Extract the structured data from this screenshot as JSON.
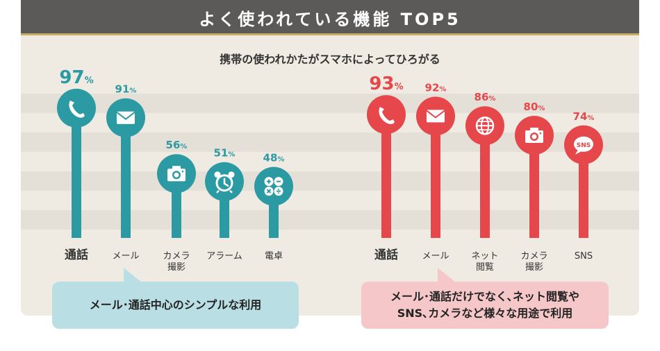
{
  "header": {
    "title": "よく使われている機能 TOP5"
  },
  "subtitle": "携帯の使われかたがスマホによってひろがる",
  "colors": {
    "teal": "#2c9aa3",
    "red": "#e5474a"
  },
  "chart_data": [
    {
      "type": "bar",
      "categories": [
        "通話",
        "メール",
        "カメラ撮影",
        "アラーム",
        "電卓"
      ],
      "category_lines": [
        [
          "通話"
        ],
        [
          "メール"
        ],
        [
          "カメラ",
          "撮影"
        ],
        [
          "アラーム"
        ],
        [
          "電卓"
        ]
      ],
      "icons": [
        "phone-icon",
        "mail-icon",
        "camera-icon",
        "alarm-clock-icon",
        "calculator-icon"
      ],
      "values": [
        97,
        91,
        56,
        51,
        48
      ],
      "value_labels": [
        "97%",
        "91%",
        "56%",
        "51%",
        "48%"
      ],
      "ylim": [
        0,
        100
      ],
      "color": "#2c9aa3"
    },
    {
      "type": "bar",
      "categories": [
        "通話",
        "メール",
        "ネット閲覧",
        "カメラ撮影",
        "SNS"
      ],
      "category_lines": [
        [
          "通話"
        ],
        [
          "メール"
        ],
        [
          "ネット",
          "閲覧"
        ],
        [
          "カメラ",
          "撮影"
        ],
        [
          "SNS"
        ]
      ],
      "icons": [
        "phone-icon",
        "mail-icon",
        "globe-icon",
        "camera-icon",
        "sns-icon"
      ],
      "values": [
        93,
        92,
        86,
        80,
        74
      ],
      "value_labels": [
        "93%",
        "92%",
        "86%",
        "80%",
        "74%"
      ],
      "ylim": [
        0,
        100
      ],
      "color": "#e5474a"
    }
  ],
  "callouts": {
    "left": "メール･通話中心のシンプルな利用",
    "right": "メール･通話だけでなく､ネット閲覧や\nSNS､カメラなど様々な用途で利用"
  }
}
